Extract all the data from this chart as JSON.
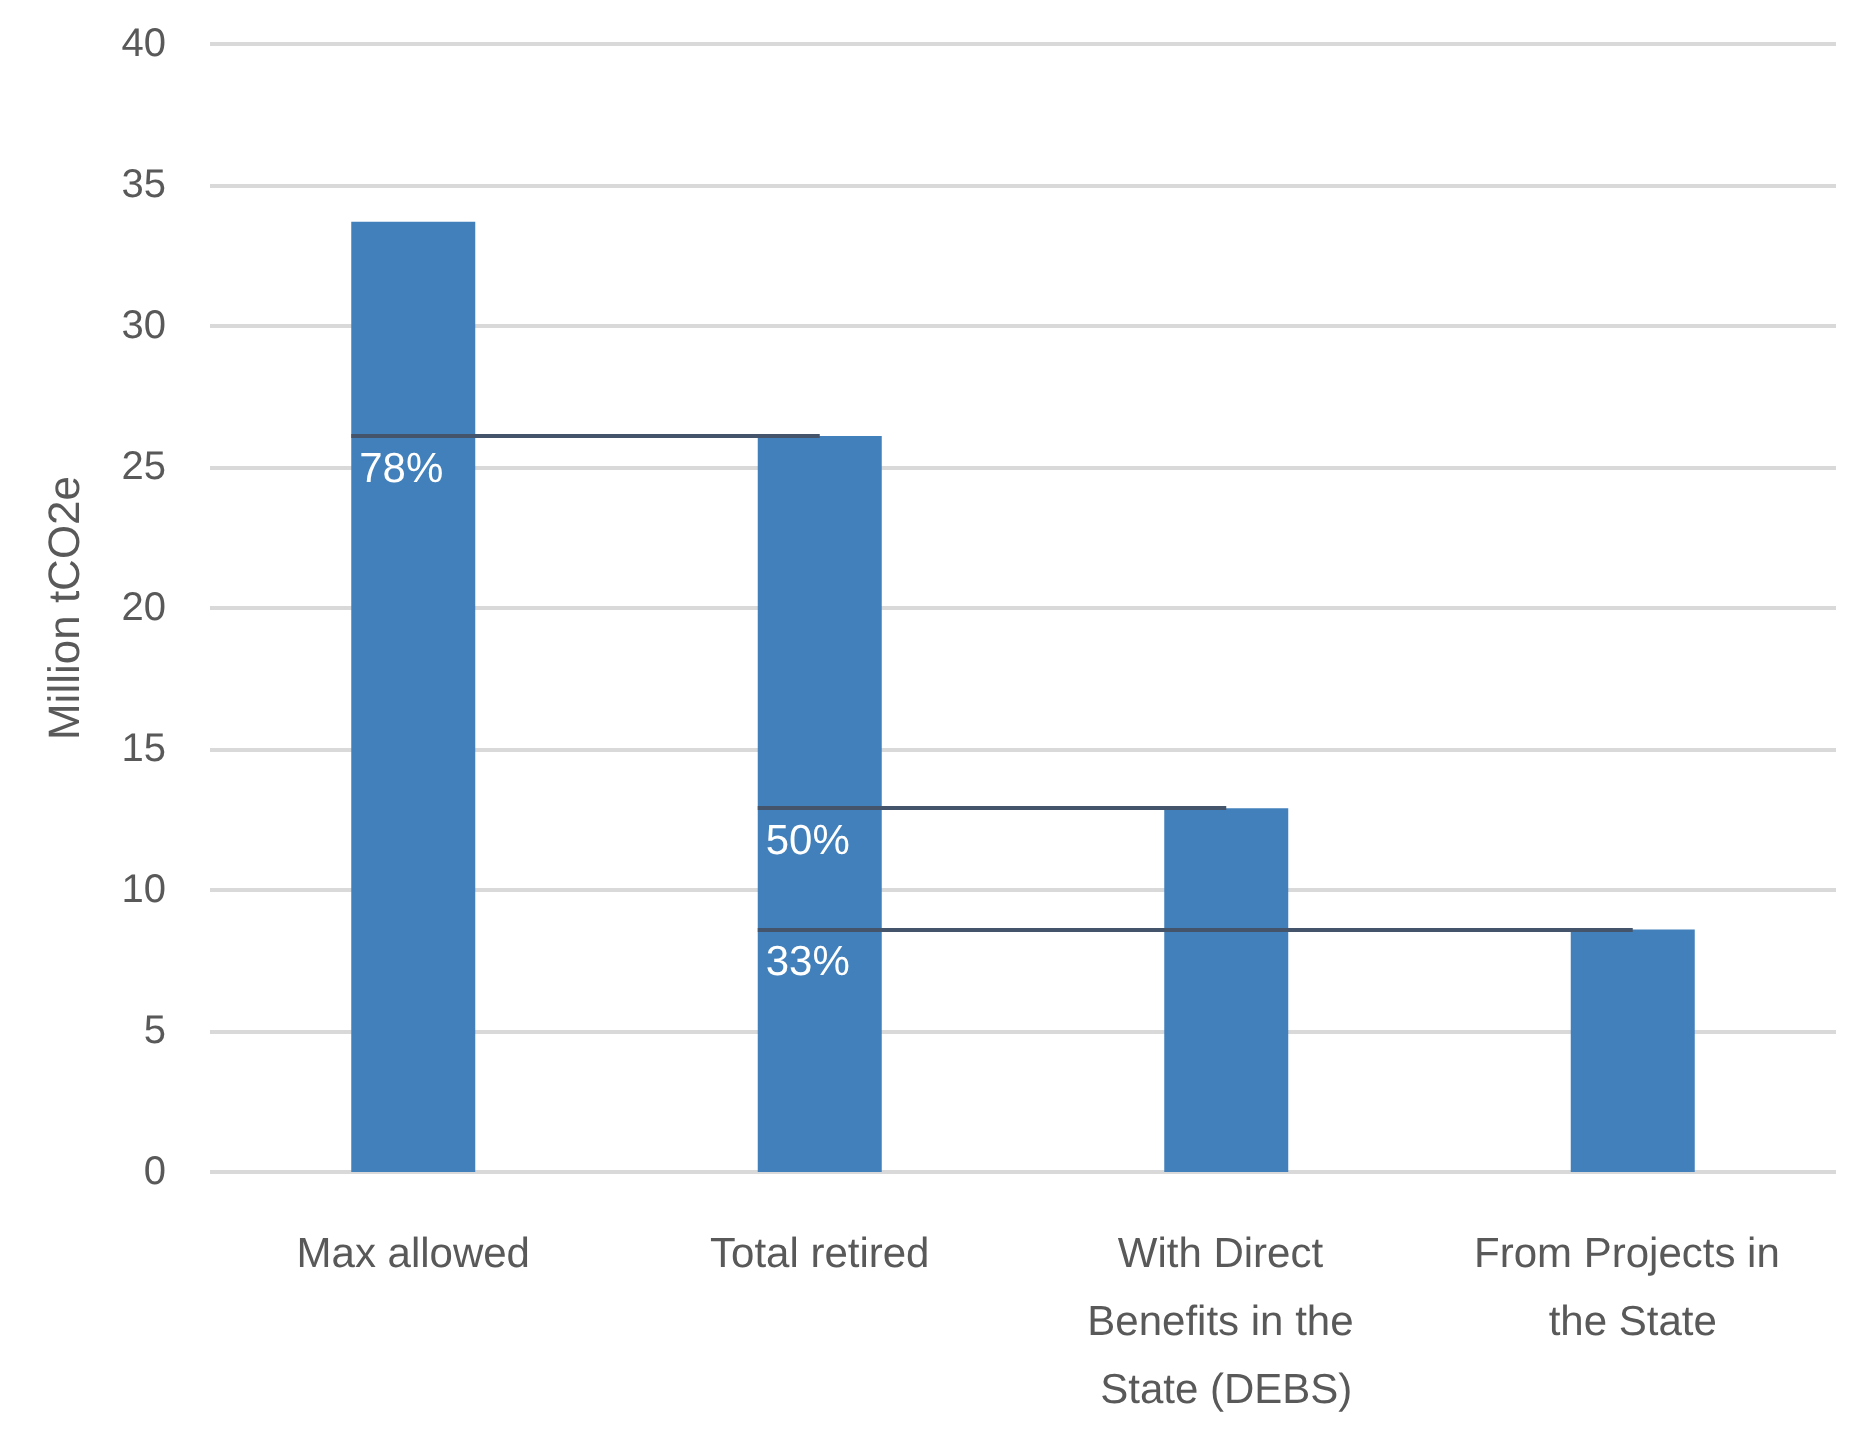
{
  "chart_data": {
    "type": "bar",
    "ylabel": "Million tCO2e",
    "categories": [
      "Max allowed",
      "Total retired",
      "With Direct Benefits in the State (DEBS)",
      "From Projects in the State"
    ],
    "values": [
      33.7,
      26.1,
      12.9,
      8.6
    ],
    "color": "#4280bb",
    "ylim": [
      0,
      40
    ],
    "yticks": [
      0,
      5,
      10,
      15,
      20,
      25,
      30,
      35,
      40
    ],
    "grid": "y",
    "annotations": [
      "78%",
      "50%",
      "33%"
    ],
    "ref_lines": [
      {
        "axis": "y",
        "value": 26.1,
        "color": "#44546a"
      },
      {
        "axis": "y",
        "value": 12.9,
        "color": "#44546a"
      },
      {
        "axis": "y",
        "value": 8.6,
        "color": "#44546a"
      }
    ]
  }
}
